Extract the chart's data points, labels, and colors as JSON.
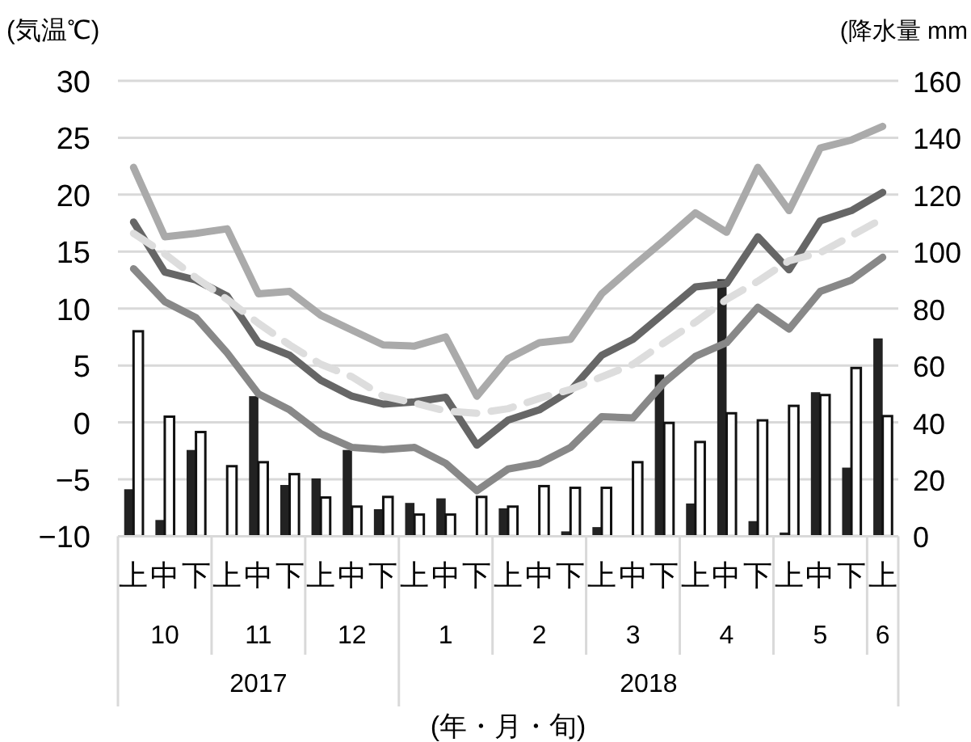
{
  "chart_data": {
    "type": "line",
    "ylabel": "(気温℃)",
    "y2label": "(降水量 mm",
    "xlabel": "(年・月・旬)",
    "categories": [
      "上",
      "中",
      "下",
      "上",
      "中",
      "下",
      "上",
      "中",
      "下",
      "上",
      "中",
      "下",
      "上",
      "中",
      "下",
      "上",
      "中",
      "下",
      "上",
      "中",
      "下",
      "上",
      "中",
      "下",
      "上"
    ],
    "annotations": [
      "10",
      "11",
      "12",
      "1",
      "2",
      "3",
      "4",
      "5",
      "6",
      "2017",
      "2018"
    ],
    "ylim": [
      -10,
      30
    ],
    "yticks": [
      -10,
      -5,
      0,
      5,
      10,
      15,
      20,
      25,
      30
    ],
    "y2lim": [
      0,
      160
    ],
    "y2ticks": [
      0,
      20,
      40,
      60,
      80,
      100,
      120,
      140,
      160
    ],
    "grid": "y",
    "series": [
      {
        "type": "bar",
        "axis": "y2",
        "color": "#222222",
        "values": [
          16.5,
          5.7,
          30.3,
          0,
          49.2,
          18,
          20.3,
          30.3,
          9.5,
          11.7,
          13.3,
          0,
          9.8,
          0,
          1.7,
          3.2,
          0.4,
          56.8,
          11.5,
          90.3,
          5.3,
          1.3,
          50.6,
          24.1,
          69.5
        ]
      },
      {
        "type": "bar",
        "axis": "y2",
        "color": "#ffffff",
        "values": [
          72,
          42,
          36.6,
          24.6,
          26,
          21.8,
          13.6,
          10.4,
          13.8,
          7.6,
          7.6,
          13.8,
          10.4,
          17.6,
          17,
          17,
          26,
          39.8,
          33.1,
          43.2,
          40.7,
          45.8,
          49.6,
          59.1,
          42.2
        ]
      },
      {
        "color": "#aaaaaa",
        "values": [
          22.4,
          16.3,
          16.6,
          17,
          11.3,
          11.5,
          9.4,
          8.1,
          6.8,
          6.7,
          7.5,
          2.3,
          5.6,
          7,
          7.3,
          11.3,
          13.7,
          16,
          18.4,
          16.7,
          22.4,
          18.6,
          24.1,
          24.8,
          26
        ]
      },
      {
        "color": "#666666",
        "values": [
          17.6,
          13.2,
          12.5,
          11.1,
          7,
          5.9,
          3.7,
          2.3,
          1.6,
          1.8,
          2.2,
          -2,
          0.2,
          1.1,
          2.8,
          5.9,
          7.3,
          9.6,
          11.9,
          12.2,
          16.3,
          13.4,
          17.7,
          18.6,
          20.2
        ]
      },
      {
        "color": "#888888",
        "values": [
          13.5,
          10.6,
          9.2,
          6.1,
          2.5,
          1.1,
          -1,
          -2.2,
          -2.4,
          -2.2,
          -3.6,
          -6,
          -4.1,
          -3.6,
          -2.2,
          0.5,
          0.4,
          3.5,
          5.8,
          7,
          10.1,
          8.2,
          11.5,
          12.5,
          14.5
        ]
      },
      {
        "color": "#dddddd",
        "line_style": "dashed",
        "values": [
          16.6,
          14.8,
          12.7,
          10.8,
          8.7,
          6.8,
          5.1,
          4,
          2.3,
          1.7,
          1,
          0.8,
          1.2,
          2.1,
          2.9,
          4,
          5.1,
          7,
          8.8,
          10.8,
          12.4,
          14.2,
          14.9,
          16.4,
          17.9
        ]
      }
    ]
  }
}
